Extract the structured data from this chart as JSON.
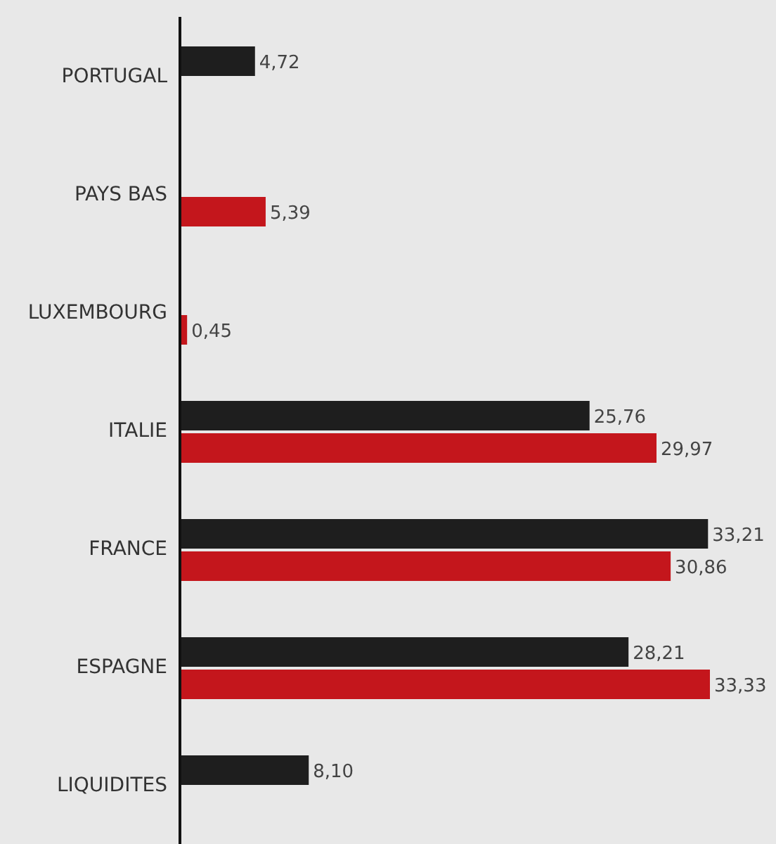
{
  "chart_data": {
    "type": "bar",
    "orientation": "horizontal",
    "categories": [
      "PORTUGAL",
      "PAYS BAS",
      "LUXEMBOURG",
      "ITALIE",
      "FRANCE",
      "ESPAGNE",
      "LIQUIDITES"
    ],
    "series": [
      {
        "color": "#1e1e1e",
        "values": [
          4.72,
          null,
          null,
          25.76,
          33.21,
          28.21,
          8.1
        ],
        "value_labels": [
          "4,72",
          null,
          null,
          "25,76",
          "33,21",
          "28,21",
          "8,10"
        ]
      },
      {
        "color": "#c4161c",
        "values": [
          null,
          5.39,
          0.45,
          29.97,
          30.86,
          33.33,
          null
        ],
        "value_labels": [
          null,
          "5,39",
          "0,45",
          "29,97",
          "30,86",
          "33,33",
          null
        ]
      }
    ]
  }
}
